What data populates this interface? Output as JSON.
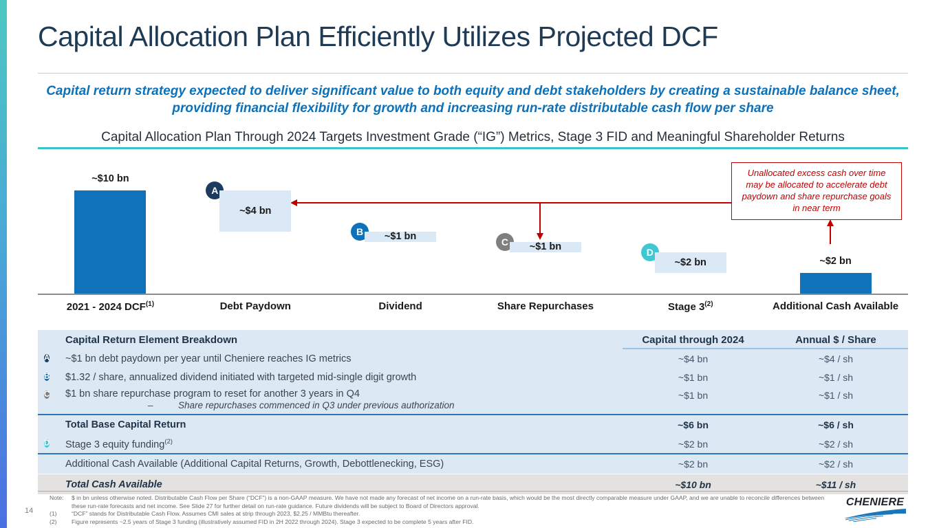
{
  "slide": {
    "title": "Capital Allocation Plan Efficiently Utilizes Projected DCF",
    "subtitle": "Capital return strategy expected to deliver significant value to both equity and debt stakeholders by creating a sustainable balance sheet, providing financial flexibility for growth and increasing run-rate distributable cash flow per share",
    "section_header": "Capital Allocation Plan Through 2024 Targets Investment Grade (“IG”) Metrics, Stage 3 FID and Meaningful Shareholder Returns",
    "page_number": "14"
  },
  "chart_data": {
    "type": "bar",
    "subtype": "waterfall",
    "unit": "USD billions",
    "ylim": [
      0,
      10
    ],
    "grid": false,
    "columns": [
      {
        "category": "2021 - 2024 DCF",
        "sup": "(1)",
        "value": 10,
        "value_label": "~$10 bn",
        "from": 0,
        "to": 10,
        "style": "solid"
      },
      {
        "category": "Debt Paydown",
        "value": 4,
        "value_label": "~$4 bn",
        "from": 6,
        "to": 10,
        "style": "float",
        "badge": "A"
      },
      {
        "category": "Dividend",
        "value": 1,
        "value_label": "~$1 bn",
        "from": 5,
        "to": 6,
        "style": "float",
        "badge": "B"
      },
      {
        "category": "Share Repurchases",
        "value": 1,
        "value_label": "~$1 bn",
        "from": 4,
        "to": 5,
        "style": "float",
        "badge": "C"
      },
      {
        "category": "Stage 3",
        "sup": "(2)",
        "value": 2,
        "value_label": "~$2 bn",
        "from": 2,
        "to": 4,
        "style": "float",
        "badge": "D"
      },
      {
        "category": "Additional Cash Available",
        "value": 2,
        "value_label": "~$2 bn",
        "from": 0,
        "to": 2,
        "style": "solid"
      }
    ],
    "annotation": {
      "text": "Unallocated excess cash over time may be allocated to accelerate debt paydown and share repurchase goals in near term"
    }
  },
  "colors": {
    "bar_solid": "#0f72ba",
    "bar_float": "#dbe9f6",
    "badges": {
      "A": "#1d3a5f",
      "B": "#0e72b8",
      "C": "#7f7f7f",
      "D": "#3fc7d4"
    },
    "annotation_red": "#c00000",
    "accent_teal": "#3bc3cd",
    "title_navy": "#1e3a54",
    "subtitle_blue": "#0d71b9",
    "table_bg": "#dce9f5",
    "table_total_bg": "#e3e2e1",
    "divider_blue": "#2e75b6"
  },
  "table": {
    "header": {
      "title": "Capital Return Element Breakdown",
      "capital_col": "Capital through 2024",
      "annual_col": "Annual $ / Share"
    },
    "rows": [
      {
        "badge": "A",
        "desc": "~$1 bn debt paydown per year until Cheniere reaches IG metrics",
        "capital": "~$4 bn",
        "annual": "~$4 / sh"
      },
      {
        "badge": "B",
        "desc": "$1.32 / share, annualized dividend initiated with targeted mid-single digit growth",
        "capital": "~$1 bn",
        "annual": "~$1 / sh"
      },
      {
        "badge": "C",
        "desc": "$1 bn share repurchase program to reset for another 3 years in Q4",
        "sub_dash": "–",
        "sub": "Share repurchases commenced in Q3 under previous authorization",
        "capital": "~$1 bn",
        "annual": "~$1 / sh"
      },
      {
        "desc": "Total Base Capital Return",
        "capital": "~$6 bn",
        "annual": "~$6 / sh"
      },
      {
        "badge": "D",
        "desc": "Stage 3 equity funding",
        "sup": "(2)",
        "capital": "~$2 bn",
        "annual": "~$2 / sh"
      },
      {
        "desc": "Additional Cash Available (Additional Capital Returns, Growth, Debottlenecking, ESG)",
        "capital": "~$2 bn",
        "annual": "~$2 / sh"
      },
      {
        "desc": "Total Cash Available",
        "capital": "~$10 bn",
        "annual": "~$11 / sh"
      }
    ]
  },
  "footnotes": {
    "note_label": "Note:",
    "note_text": "$ in bn unless otherwise noted. Distributable Cash Flow per Share (“DCF”) is a non-GAAP measure. We have not made any forecast of net income on a run-rate basis, which would be the most directly comparable measure under GAAP, and we are unable to reconcile differences between these run-rate forecasts and net income. See Slide 27 for further detail on run-rate guidance. Future dividends will be subject to Board of Directors approval.",
    "items": [
      {
        "num": "(1)",
        "text": "“DCF” stands for Distributable Cash Flow. Assumes CMI sales at strip through 2023, $2.25 / MMBtu thereafter."
      },
      {
        "num": "(2)",
        "text": "Figure represents ~2.5 years of Stage 3 funding (illustratively assumed FID in 2H 2022 through 2024). Stage 3 expected to be complete 5 years after FID."
      }
    ]
  },
  "logo": {
    "text": "CHENIERE"
  }
}
